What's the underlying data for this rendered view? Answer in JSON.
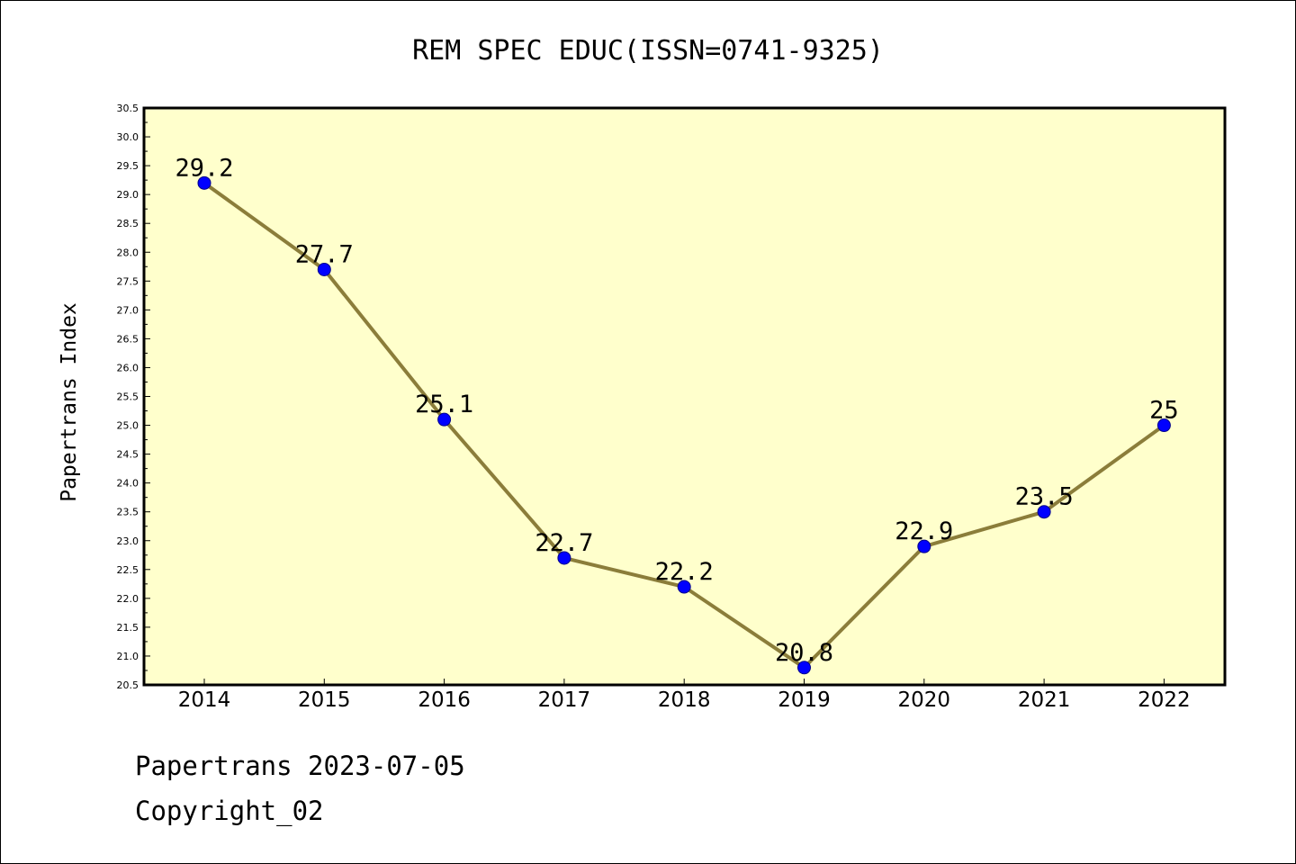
{
  "footer": {
    "line1": "Papertrans 2023-07-05",
    "line2": "Copyright_02"
  },
  "colors": {
    "plot_background": "#ffffcc",
    "line": "#8b7d3a",
    "marker": "#0000ff"
  },
  "chart_data": {
    "type": "line",
    "title": "REM SPEC EDUC(ISSN=0741-9325)",
    "xlabel": "",
    "ylabel": "Papertrans Index",
    "ylim": [
      20.5,
      30.5
    ],
    "ytick_step": 0.5,
    "grid": false,
    "legend": "none",
    "categories": [
      "2014",
      "2015",
      "2016",
      "2017",
      "2018",
      "2019",
      "2020",
      "2021",
      "2022"
    ],
    "values": [
      29.2,
      27.7,
      25.1,
      22.7,
      22.2,
      20.8,
      22.9,
      23.5,
      25
    ],
    "data_labels": [
      "29.2",
      "27.7",
      "25.1",
      "22.7",
      "22.2",
      "20.8",
      "22.9",
      "23.5",
      "25"
    ]
  }
}
